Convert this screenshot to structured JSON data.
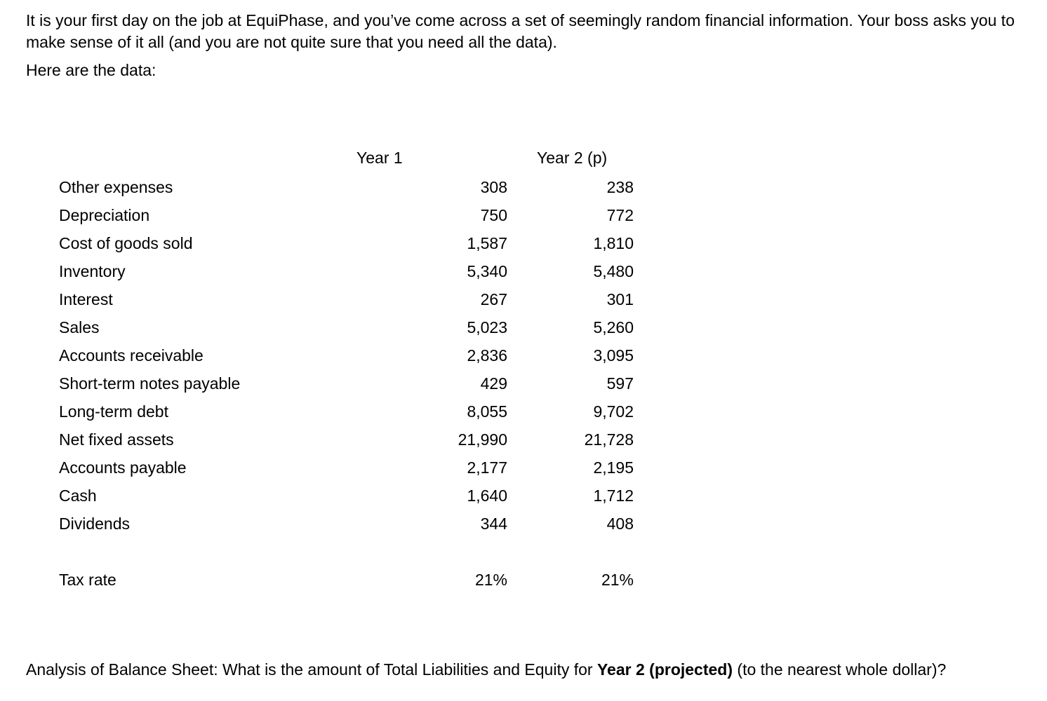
{
  "intro": {
    "paragraph": "It is your first day on the job at EquiPhase, and you’ve come across a set of seemingly random financial information. Your boss asks you to make sense of it all (and you are not quite sure that you need all the data).",
    "data_intro": "Here are the data:"
  },
  "table": {
    "col_headers": {
      "year1": "Year 1",
      "year2": "Year 2 (p)"
    },
    "rows": [
      {
        "label": "Other expenses",
        "year1": "308",
        "year2": "238"
      },
      {
        "label": "Depreciation",
        "year1": "750",
        "year2": "772"
      },
      {
        "label": "Cost of goods sold",
        "year1": "1,587",
        "year2": "1,810"
      },
      {
        "label": "Inventory",
        "year1": "5,340",
        "year2": "5,480"
      },
      {
        "label": "Interest",
        "year1": "267",
        "year2": "301"
      },
      {
        "label": "Sales",
        "year1": "5,023",
        "year2": "5,260"
      },
      {
        "label": "Accounts receivable",
        "year1": "2,836",
        "year2": "3,095"
      },
      {
        "label": "Short-term notes payable",
        "year1": "429",
        "year2": "597"
      },
      {
        "label": "Long-term debt",
        "year1": "8,055",
        "year2": "9,702"
      },
      {
        "label": "Net fixed assets",
        "year1": "21,990",
        "year2": "21,728"
      },
      {
        "label": "Accounts payable",
        "year1": "2,177",
        "year2": "2,195"
      },
      {
        "label": "Cash",
        "year1": "1,640",
        "year2": "1,712"
      },
      {
        "label": "Dividends",
        "year1": "344",
        "year2": "408"
      }
    ],
    "tax_row": {
      "label": "Tax rate",
      "year1": "21%",
      "year2": "21%"
    }
  },
  "question": {
    "prefix": "Analysis of Balance Sheet: What is the amount of Total Liabilities and Equity for ",
    "bold": "Year 2 (projected)",
    "suffix": " (to the nearest whole dollar)?"
  }
}
